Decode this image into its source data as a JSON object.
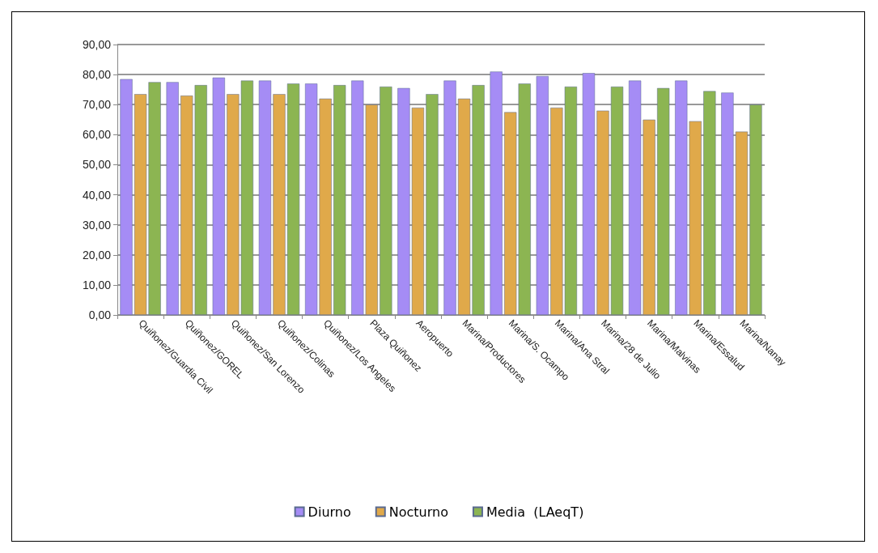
{
  "chart_data": {
    "type": "bar",
    "categories": [
      "Quiñonez/Guardia Civil",
      "Quiñonez/GOREL",
      "Quiñonez/San Lorenzo",
      "Quiñonez/Colinas",
      "Quiñonez/Los Angeles",
      "Plaza Quiñonez",
      "Aeropuerto",
      "Marina/Productores",
      "Marina/S. Ocampo",
      "Marina/Ana Stral",
      "Marina/28 de Julio",
      "Marina/Malvinas",
      "Marina/Essalud",
      "Marina/Nanay"
    ],
    "series": [
      {
        "name": "Diurno",
        "color": "#a58cf5",
        "values": [
          78.5,
          77.5,
          79,
          78,
          77,
          78,
          75.5,
          78,
          81,
          79.5,
          80.5,
          78,
          78,
          74
        ]
      },
      {
        "name": "Nocturno",
        "color": "#e0a94a",
        "values": [
          73.5,
          73,
          73.5,
          73.5,
          72,
          70,
          69,
          72,
          67.5,
          69,
          68,
          65,
          64.5,
          61
        ]
      },
      {
        "name": "Media  (LAeqT)",
        "color": "#8cb552",
        "values": [
          77.5,
          76.5,
          78,
          77,
          76.5,
          76,
          73.5,
          76.5,
          77,
          76,
          76,
          75.5,
          74.5,
          70
        ]
      }
    ],
    "ylim": [
      0,
      90
    ],
    "yticks": [
      {
        "value": 0,
        "label": "0,00"
      },
      {
        "value": 10,
        "label": "10,00"
      },
      {
        "value": 20,
        "label": "20,00"
      },
      {
        "value": 30,
        "label": "30,00"
      },
      {
        "value": 40,
        "label": "40,00"
      },
      {
        "value": 50,
        "label": "50,00"
      },
      {
        "value": 60,
        "label": "60,00"
      },
      {
        "value": 70,
        "label": "70,00"
      },
      {
        "value": 80,
        "label": "80,00"
      },
      {
        "value": 90,
        "label": "90,00"
      }
    ],
    "grid": "y",
    "legend": "bottom"
  }
}
